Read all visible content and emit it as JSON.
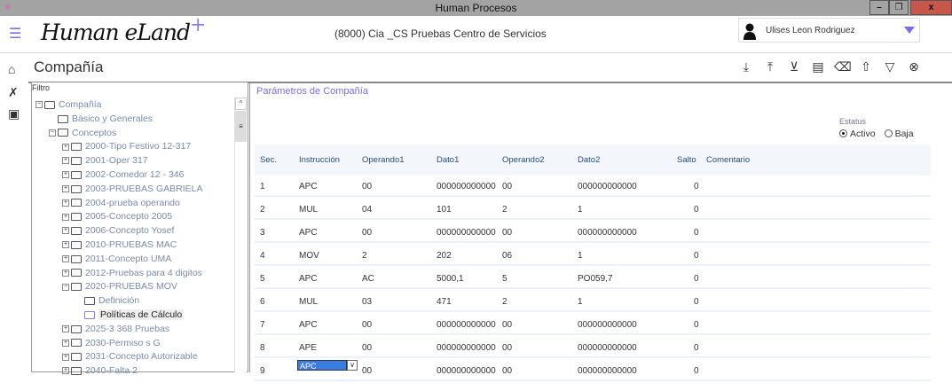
{
  "window": {
    "title": "Human Procesos",
    "minimize": "–",
    "restore": "❐",
    "close": "x"
  },
  "header": {
    "logo": "Human eLand",
    "logo_plus": "+",
    "company": "(8000) Cia _CS  Pruebas Centro de Servicios",
    "user": "Ulises Leon Rodriguez"
  },
  "page": {
    "title": "Compañía"
  },
  "toolbar": [
    "download-icon",
    "upload-icon",
    "import-icon",
    "save-icon",
    "clear-icon",
    "share-icon",
    "filter-icon",
    "cancel-icon"
  ],
  "tree": {
    "filter_label": "Filtro",
    "items": [
      {
        "label": "Compañía",
        "level": 0,
        "toggle": "−"
      },
      {
        "label": "Básico y Generales",
        "level": 1,
        "toggle": ""
      },
      {
        "label": "Conceptos",
        "level": 1,
        "toggle": "−"
      },
      {
        "label": "2000-Tipo Festivo 12-317",
        "level": 2,
        "toggle": "+"
      },
      {
        "label": "2001-Oper 317",
        "level": 2,
        "toggle": "+"
      },
      {
        "label": "2002-Comedor 12 - 346",
        "level": 2,
        "toggle": "+"
      },
      {
        "label": "2003-PRUEBAS GABRIELA",
        "level": 2,
        "toggle": "+"
      },
      {
        "label": "2004-prueba operando",
        "level": 2,
        "toggle": "+"
      },
      {
        "label": "2005-Concepto 2005",
        "level": 2,
        "toggle": "+"
      },
      {
        "label": "2006-Concepto Yosef",
        "level": 2,
        "toggle": "+"
      },
      {
        "label": "2010-PRUEBAS MAC",
        "level": 2,
        "toggle": "+"
      },
      {
        "label": "2011-Concepto UMA",
        "level": 2,
        "toggle": "+"
      },
      {
        "label": "2012-Pruebas para 4 digitos",
        "level": 2,
        "toggle": "+"
      },
      {
        "label": "2020-PRUEBAS MOV",
        "level": 2,
        "toggle": "−"
      },
      {
        "label": "Definición",
        "level": 3,
        "toggle": ""
      },
      {
        "label": "Políticas de Cálculo",
        "level": 3,
        "toggle": "",
        "selected": true
      },
      {
        "label": "2025-3 368 Pruebas",
        "level": 2,
        "toggle": "+"
      },
      {
        "label": "2030-Permiso s G",
        "level": 2,
        "toggle": "+"
      },
      {
        "label": "2031-Concepto Autorizable",
        "level": 2,
        "toggle": "+"
      },
      {
        "label": "2040-Falta 2",
        "level": 2,
        "toggle": "+"
      }
    ]
  },
  "main": {
    "title": "Parámetros de Compañía",
    "status_label": "Estatus",
    "status_options": [
      "Activo",
      "Baja"
    ],
    "status_selected": "Activo",
    "columns": [
      "Sec.",
      "Instrucción",
      "Operando1",
      "Dato1",
      "Operando2",
      "Dato2",
      "Salto",
      "Comentario"
    ],
    "rows": [
      [
        "1",
        "APC",
        "00",
        "000000000000",
        "00",
        "000000000000",
        "0",
        ""
      ],
      [
        "2",
        "MUL",
        "04",
        "101",
        "2",
        "1",
        "0",
        ""
      ],
      [
        "3",
        "APC",
        "00",
        "000000000000",
        "00",
        "000000000000",
        "0",
        ""
      ],
      [
        "4",
        "MOV",
        "2",
        "202",
        "06",
        "1",
        "0",
        ""
      ],
      [
        "5",
        "APC",
        "AC",
        "5000,1",
        "5",
        "PO059,7",
        "0",
        ""
      ],
      [
        "6",
        "MUL",
        "03",
        "471",
        "2",
        "1",
        "0",
        ""
      ],
      [
        "7",
        "APC",
        "00",
        "000000000000",
        "00",
        "000000000000",
        "0",
        ""
      ],
      [
        "8",
        "APE",
        "00",
        "000000000000",
        "00",
        "000000000000",
        "0",
        ""
      ],
      [
        "9",
        "APC",
        "00",
        "000000000000",
        "00",
        "000000000000",
        "0",
        ""
      ]
    ]
  },
  "colors": {
    "accent": "#7c6cf0",
    "titlebar": "#a3a3a3",
    "close": "#c7574a"
  }
}
